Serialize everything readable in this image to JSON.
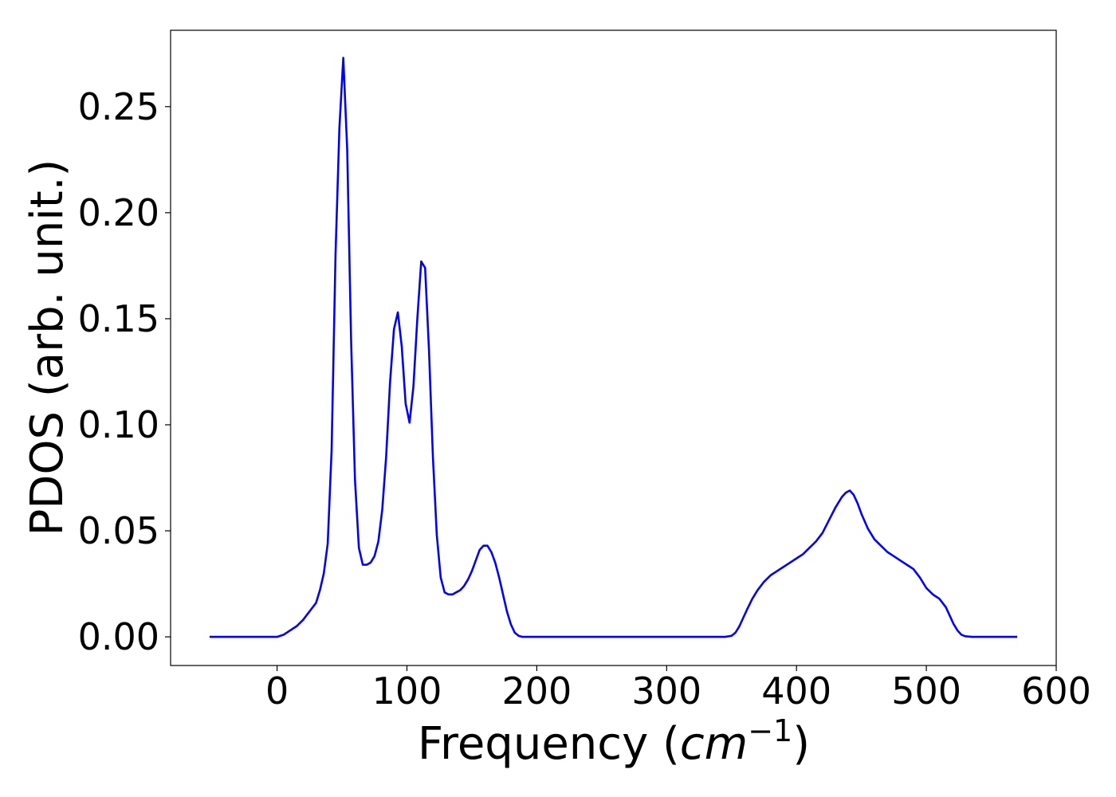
{
  "chart_data": {
    "type": "line",
    "title": "",
    "xlabel": {
      "prefix": "Frequency (",
      "italic": "cm",
      "superscript": "−1",
      "suffix": ")"
    },
    "ylabel": "PDOS (arb. unit.)",
    "xlim": [
      -82,
      600
    ],
    "ylim": [
      -0.0135,
      0.286
    ],
    "xticks": [
      {
        "value": 0,
        "label": "0"
      },
      {
        "value": 100,
        "label": "100"
      },
      {
        "value": 200,
        "label": "200"
      },
      {
        "value": 300,
        "label": "300"
      },
      {
        "value": 400,
        "label": "400"
      },
      {
        "value": 500,
        "label": "500"
      },
      {
        "value": 600,
        "label": "600"
      }
    ],
    "yticks": [
      {
        "value": 0.0,
        "label": "0.00"
      },
      {
        "value": 0.05,
        "label": "0.05"
      },
      {
        "value": 0.1,
        "label": "0.10"
      },
      {
        "value": 0.15,
        "label": "0.15"
      },
      {
        "value": 0.2,
        "label": "0.20"
      },
      {
        "value": 0.25,
        "label": "0.25"
      }
    ],
    "grid": false,
    "series": [
      {
        "color": "#0000ff",
        "x": [
          -52,
          0,
          5,
          10,
          15,
          20,
          25,
          30,
          33,
          36,
          39,
          42,
          45,
          48,
          51,
          54,
          57,
          60,
          63,
          66,
          69,
          72,
          75,
          78,
          81,
          84,
          87,
          90,
          93,
          96,
          99,
          102,
          105,
          108,
          111,
          114,
          117,
          120,
          123,
          126,
          129,
          132,
          135,
          138,
          141,
          144,
          147,
          150,
          153,
          156,
          159,
          162,
          165,
          168,
          171,
          174,
          177,
          180,
          183,
          186,
          189,
          192,
          200,
          250,
          300,
          345,
          350,
          353,
          356,
          359,
          362,
          366,
          370,
          375,
          380,
          385,
          390,
          395,
          400,
          405,
          410,
          415,
          420,
          425,
          430,
          435,
          438,
          441,
          444,
          447,
          450,
          455,
          460,
          465,
          470,
          475,
          480,
          485,
          490,
          495,
          500,
          505,
          510,
          515,
          518,
          521,
          524,
          527,
          530,
          535,
          540,
          570
        ],
        "y": [
          0.0,
          0.0,
          0.001,
          0.003,
          0.005,
          0.008,
          0.012,
          0.016,
          0.022,
          0.03,
          0.044,
          0.088,
          0.18,
          0.24,
          0.273,
          0.23,
          0.14,
          0.074,
          0.042,
          0.034,
          0.034,
          0.035,
          0.038,
          0.045,
          0.06,
          0.085,
          0.12,
          0.145,
          0.153,
          0.137,
          0.11,
          0.101,
          0.118,
          0.15,
          0.177,
          0.174,
          0.135,
          0.085,
          0.048,
          0.028,
          0.021,
          0.02,
          0.02,
          0.021,
          0.022,
          0.024,
          0.027,
          0.031,
          0.036,
          0.041,
          0.043,
          0.043,
          0.04,
          0.035,
          0.028,
          0.02,
          0.012,
          0.006,
          0.002,
          0.0005,
          0.0,
          0.0,
          0.0,
          0.0,
          0.0,
          0.0,
          0.0005,
          0.002,
          0.005,
          0.009,
          0.013,
          0.018,
          0.022,
          0.026,
          0.029,
          0.031,
          0.033,
          0.035,
          0.037,
          0.039,
          0.042,
          0.045,
          0.049,
          0.055,
          0.061,
          0.066,
          0.068,
          0.069,
          0.067,
          0.063,
          0.058,
          0.051,
          0.046,
          0.043,
          0.04,
          0.038,
          0.036,
          0.034,
          0.032,
          0.028,
          0.023,
          0.02,
          0.018,
          0.014,
          0.01,
          0.006,
          0.003,
          0.001,
          0.0003,
          0.0,
          0.0,
          0.0
        ]
      }
    ]
  }
}
